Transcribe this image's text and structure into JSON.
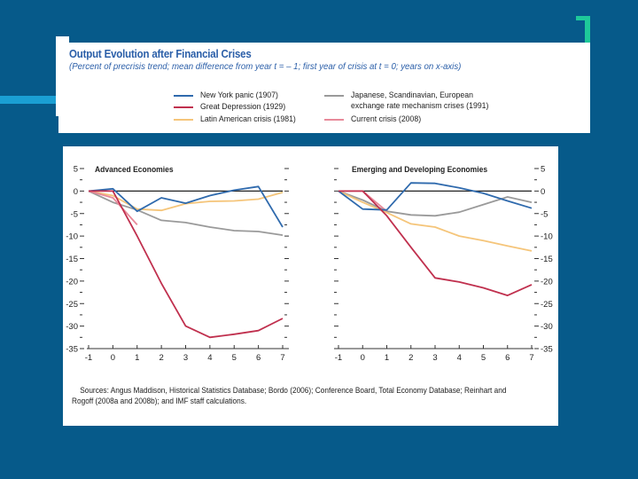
{
  "header": {
    "title": "Output Evolution after Financial Crises",
    "subtitle": "(Percent of precrisis trend; mean difference from year  t = – 1; first year of crisis at t = 0; years on x-axis)"
  },
  "legend": [
    {
      "label": "New York panic (1907)",
      "color": "#2f6aad"
    },
    {
      "label": "Great Depression (1929)",
      "color": "#c0304e"
    },
    {
      "label": "Latin American crisis (1981)",
      "color": "#f5c57a"
    },
    {
      "label": "Japanese, Scandinavian, European exchange rate mechanism crises (1991)",
      "label_line1": "Japanese, Scandinavian, European",
      "label_line2": "exchange rate mechanism crises (1991)",
      "color": "#9a9a9a"
    },
    {
      "label": "Current crisis (2008)",
      "color": "#e88a9a"
    }
  ],
  "sources": {
    "line1": "Sources: Angus Maddison, Historical Statistics Database; Bordo (2006); Conference Board, Total Economy Database; Reinhart and",
    "line2": "Rogoff (2008a and 2008b); and IMF staff calculations."
  },
  "colors": {
    "background": "#065a8a",
    "accent_bar": "#1a9fd4",
    "accent_corner": "#1ec99a",
    "title_blue": "#2a5ea8"
  },
  "chart_data": [
    {
      "type": "line",
      "title": "Advanced Economies",
      "x": [
        -1,
        0,
        1,
        2,
        3,
        4,
        5,
        6,
        7
      ],
      "xticks": [
        "-1",
        "0",
        "1",
        "2",
        "3",
        "4",
        "5",
        "6",
        "7"
      ],
      "ylim": [
        -35,
        5
      ],
      "yticks": [
        "5",
        "0",
        "-5",
        "-10",
        "-15",
        "-20",
        "-25",
        "-30",
        "-35"
      ],
      "ytick_values": [
        5,
        0,
        -5,
        -10,
        -15,
        -20,
        -25,
        -30,
        -35
      ],
      "yaxis_labels": "left",
      "xlabel": "",
      "ylabel": "",
      "series": [
        {
          "name": "New York panic (1907)",
          "color": "#2f6aad",
          "x": [
            -1,
            0,
            1,
            2,
            3,
            4,
            5,
            6,
            7
          ],
          "values": [
            0,
            0.5,
            -4.5,
            -1.5,
            -2.7,
            -1,
            0.2,
            1,
            -8
          ]
        },
        {
          "name": "Great Depression (1929)",
          "color": "#c0304e",
          "x": [
            -1,
            0,
            1,
            2,
            3,
            4,
            5,
            6,
            7
          ],
          "values": [
            0,
            0,
            -10,
            -20.5,
            -30,
            -32.5,
            -31.8,
            -31,
            -28.3
          ]
        },
        {
          "name": "Latin American crisis (1981)",
          "color": "#f5c57a",
          "x": [
            -1,
            0,
            1,
            2,
            3,
            4,
            5,
            6,
            7
          ],
          "values": [
            0,
            -1,
            -4,
            -4.3,
            -2.8,
            -2.3,
            -2.2,
            -1.8,
            -0.3
          ]
        },
        {
          "name": "Japanese, Scandinavian, European ERM crises (1991)",
          "color": "#9a9a9a",
          "x": [
            -1,
            0,
            1,
            2,
            3,
            4,
            5,
            6,
            7
          ],
          "values": [
            0,
            -2.5,
            -4.2,
            -6.5,
            -7,
            -8,
            -8.8,
            -9,
            -9.8
          ]
        },
        {
          "name": "Current crisis (2008)",
          "color": "#e88a9a",
          "x": [
            -1,
            0,
            1
          ],
          "values": [
            0,
            -1.5,
            -7.5
          ]
        }
      ]
    },
    {
      "type": "line",
      "title": "Emerging and Developing Economies",
      "x": [
        -1,
        0,
        1,
        2,
        3,
        4,
        5,
        6,
        7
      ],
      "xticks": [
        "-1",
        "0",
        "1",
        "2",
        "3",
        "4",
        "5",
        "6",
        "7"
      ],
      "ylim": [
        -35,
        5
      ],
      "yticks": [
        "5",
        "0",
        "-5",
        "-10",
        "-15",
        "-20",
        "-25",
        "-30",
        "-35"
      ],
      "ytick_values": [
        5,
        0,
        -5,
        -10,
        -15,
        -20,
        -25,
        -30,
        -35
      ],
      "yaxis_labels": "right",
      "xlabel": "",
      "ylabel": "",
      "series": [
        {
          "name": "New York panic (1907)",
          "color": "#2f6aad",
          "x": [
            -1,
            0,
            1,
            2,
            3,
            4,
            5,
            6,
            7
          ],
          "values": [
            0,
            -4,
            -4.2,
            1.8,
            1.7,
            0.7,
            -0.5,
            -2.2,
            -3.8
          ]
        },
        {
          "name": "Great Depression (1929)",
          "color": "#c0304e",
          "x": [
            -1,
            0,
            1,
            2,
            3,
            4,
            5,
            6,
            7
          ],
          "values": [
            0,
            0,
            -5.5,
            -12.5,
            -19.3,
            -20.2,
            -21.5,
            -23.2,
            -20.8
          ]
        },
        {
          "name": "Latin American crisis (1981)",
          "color": "#f5c57a",
          "x": [
            -1,
            0,
            1,
            2,
            3,
            4,
            5,
            6,
            7
          ],
          "values": [
            0,
            -2.5,
            -4.8,
            -7.3,
            -8,
            -10,
            -11,
            -12.2,
            -13.3
          ]
        },
        {
          "name": "Japanese, Scandinavian, European ERM crises (1991)",
          "color": "#9a9a9a",
          "x": [
            -1,
            0,
            1,
            2,
            3,
            4,
            5,
            6,
            7
          ],
          "values": [
            0,
            -2,
            -4.5,
            -5.3,
            -5.5,
            -4.7,
            -3,
            -1.3,
            -2.5
          ]
        },
        {
          "name": "Current crisis (2008)",
          "color": "#e88a9a",
          "x": [
            -1,
            0,
            1
          ],
          "values": [
            0,
            0,
            -4.5
          ]
        }
      ]
    }
  ]
}
